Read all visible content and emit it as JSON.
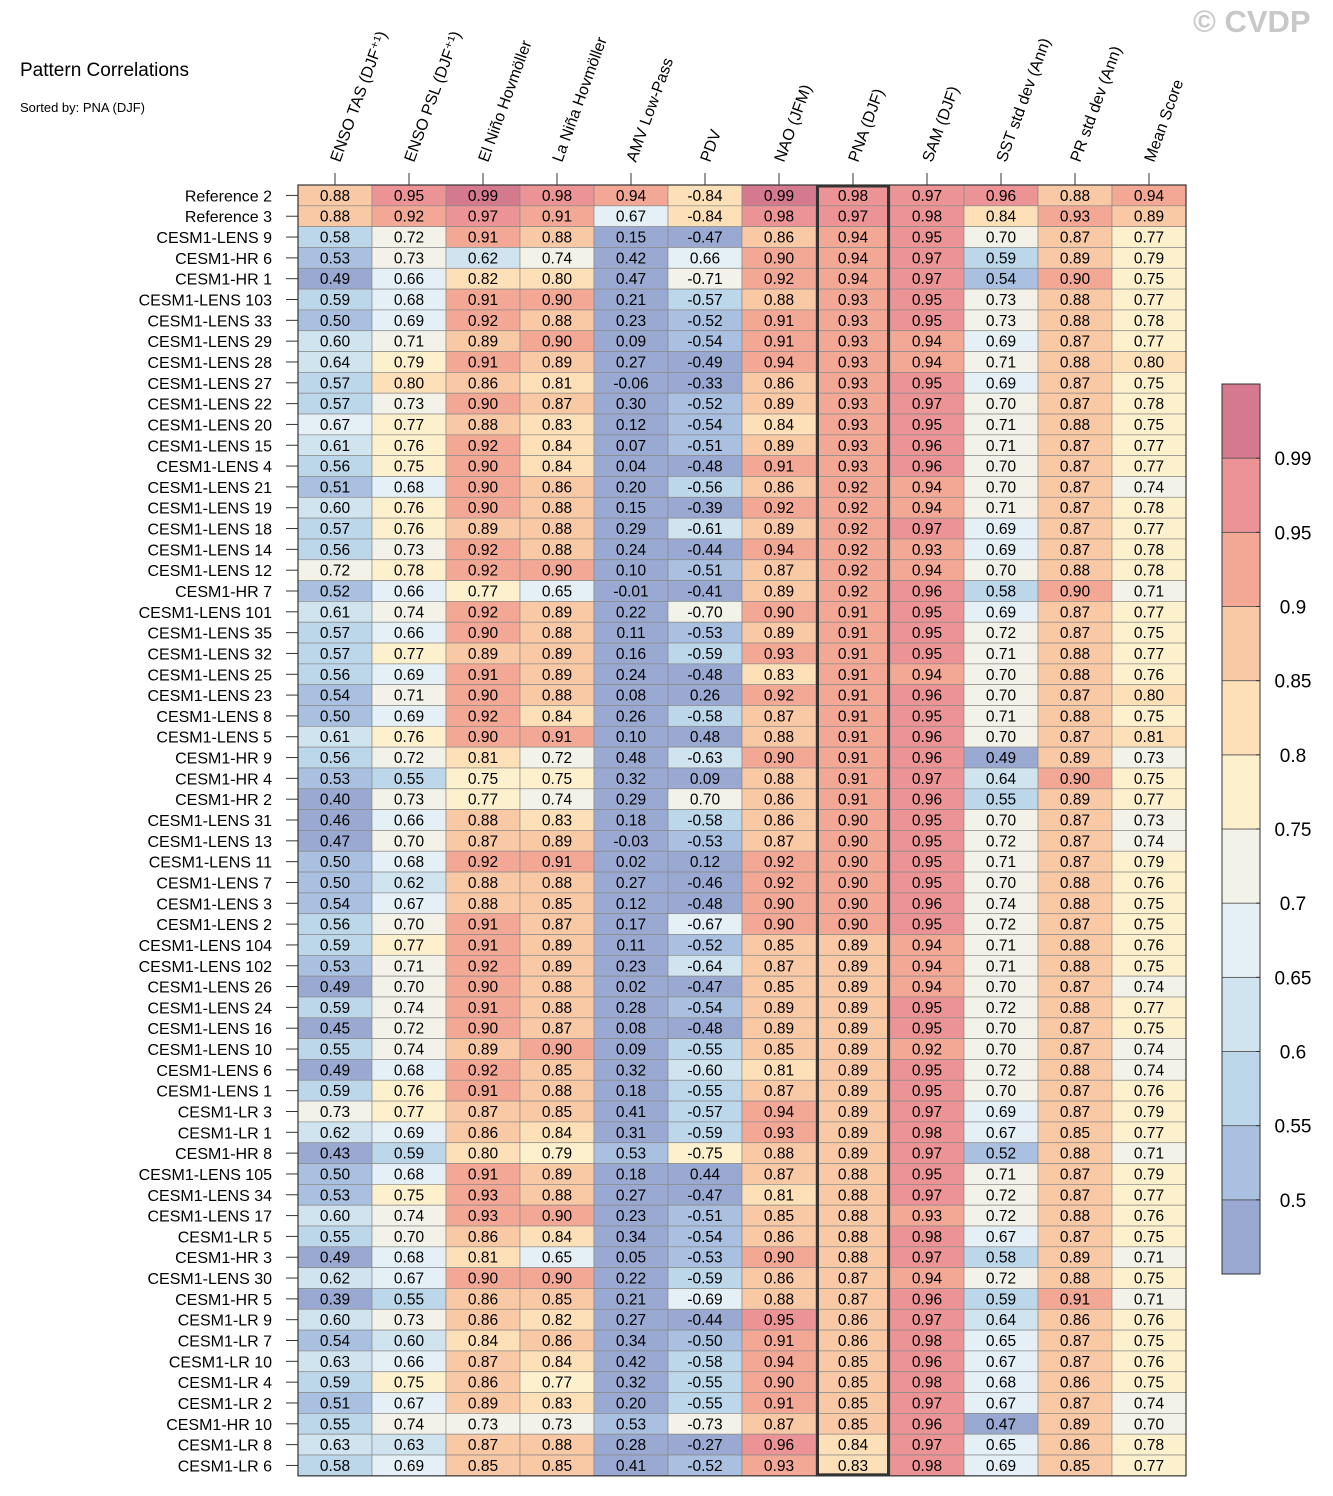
{
  "title": "Pattern Correlations",
  "subtitle": "Sorted by: PNA (DJF)",
  "watermark": "© CVDP",
  "chart_data": {
    "type": "heatmap",
    "title": "Pattern Correlations",
    "subtitle": "Sorted by: PNA (DJF)",
    "highlighted_column": "PNA (DJF)",
    "columns": [
      "ENSO TAS (DJF⁺¹)",
      "ENSO PSL (DJF⁺¹)",
      "El Niño Hovmöller",
      "La Niña Hovmöller",
      "AMV Low-Pass",
      "PDV",
      "NAO (JFM)",
      "PNA (DJF)",
      "SAM (DJF)",
      "SST std dev (Ann)",
      "PR std dev (Ann)",
      "Mean Score"
    ],
    "rows": [
      {
        "name": "Reference 2",
        "values": [
          0.88,
          0.95,
          0.99,
          0.98,
          0.94,
          -0.84,
          0.99,
          0.98,
          0.97,
          0.96,
          0.88,
          0.94
        ]
      },
      {
        "name": "Reference 3",
        "values": [
          0.88,
          0.92,
          0.97,
          0.91,
          0.67,
          -0.84,
          0.98,
          0.97,
          0.98,
          0.84,
          0.93,
          0.89
        ]
      },
      {
        "name": "CESM1-LENS 9",
        "values": [
          0.58,
          0.72,
          0.91,
          0.88,
          0.15,
          -0.47,
          0.86,
          0.94,
          0.95,
          0.7,
          0.87,
          0.77
        ]
      },
      {
        "name": "CESM1-HR 6",
        "values": [
          0.53,
          0.73,
          0.62,
          0.74,
          0.42,
          0.66,
          0.9,
          0.94,
          0.97,
          0.59,
          0.89,
          0.79
        ]
      },
      {
        "name": "CESM1-HR 1",
        "values": [
          0.49,
          0.66,
          0.82,
          0.8,
          0.47,
          -0.71,
          0.92,
          0.94,
          0.97,
          0.54,
          0.9,
          0.75
        ]
      },
      {
        "name": "CESM1-LENS 103",
        "values": [
          0.59,
          0.68,
          0.91,
          0.9,
          0.21,
          -0.57,
          0.88,
          0.93,
          0.95,
          0.73,
          0.88,
          0.77
        ]
      },
      {
        "name": "CESM1-LENS 33",
        "values": [
          0.5,
          0.69,
          0.92,
          0.88,
          0.23,
          -0.52,
          0.91,
          0.93,
          0.95,
          0.73,
          0.88,
          0.78
        ]
      },
      {
        "name": "CESM1-LENS 29",
        "values": [
          0.6,
          0.71,
          0.89,
          0.9,
          0.09,
          -0.54,
          0.91,
          0.93,
          0.94,
          0.69,
          0.87,
          0.77
        ]
      },
      {
        "name": "CESM1-LENS 28",
        "values": [
          0.64,
          0.79,
          0.91,
          0.89,
          0.27,
          -0.49,
          0.94,
          0.93,
          0.94,
          0.71,
          0.88,
          0.8
        ]
      },
      {
        "name": "CESM1-LENS 27",
        "values": [
          0.57,
          0.8,
          0.86,
          0.81,
          -0.06,
          -0.33,
          0.86,
          0.93,
          0.95,
          0.69,
          0.87,
          0.75
        ]
      },
      {
        "name": "CESM1-LENS 22",
        "values": [
          0.57,
          0.73,
          0.9,
          0.87,
          0.3,
          -0.52,
          0.89,
          0.93,
          0.97,
          0.7,
          0.87,
          0.78
        ]
      },
      {
        "name": "CESM1-LENS 20",
        "values": [
          0.67,
          0.77,
          0.88,
          0.83,
          0.12,
          -0.54,
          0.84,
          0.93,
          0.95,
          0.71,
          0.88,
          0.75
        ]
      },
      {
        "name": "CESM1-LENS 15",
        "values": [
          0.61,
          0.76,
          0.92,
          0.84,
          0.07,
          -0.51,
          0.89,
          0.93,
          0.96,
          0.71,
          0.87,
          0.77
        ]
      },
      {
        "name": "CESM1-LENS 4",
        "values": [
          0.56,
          0.75,
          0.9,
          0.84,
          0.04,
          -0.48,
          0.91,
          0.93,
          0.96,
          0.7,
          0.87,
          0.77
        ]
      },
      {
        "name": "CESM1-LENS 21",
        "values": [
          0.51,
          0.68,
          0.9,
          0.86,
          0.2,
          -0.56,
          0.86,
          0.92,
          0.94,
          0.7,
          0.87,
          0.74
        ]
      },
      {
        "name": "CESM1-LENS 19",
        "values": [
          0.6,
          0.76,
          0.9,
          0.88,
          0.15,
          -0.39,
          0.92,
          0.92,
          0.94,
          0.71,
          0.87,
          0.78
        ]
      },
      {
        "name": "CESM1-LENS 18",
        "values": [
          0.57,
          0.76,
          0.89,
          0.88,
          0.29,
          -0.61,
          0.89,
          0.92,
          0.97,
          0.69,
          0.87,
          0.77
        ]
      },
      {
        "name": "CESM1-LENS 14",
        "values": [
          0.56,
          0.73,
          0.92,
          0.88,
          0.24,
          -0.44,
          0.94,
          0.92,
          0.93,
          0.69,
          0.87,
          0.78
        ]
      },
      {
        "name": "CESM1-LENS 12",
        "values": [
          0.72,
          0.78,
          0.92,
          0.9,
          0.1,
          -0.51,
          0.87,
          0.92,
          0.94,
          0.7,
          0.88,
          0.78
        ]
      },
      {
        "name": "CESM1-HR 7",
        "values": [
          0.52,
          0.66,
          0.77,
          0.65,
          -0.01,
          -0.41,
          0.89,
          0.92,
          0.96,
          0.58,
          0.9,
          0.71
        ]
      },
      {
        "name": "CESM1-LENS 101",
        "values": [
          0.61,
          0.74,
          0.92,
          0.89,
          0.22,
          -0.7,
          0.9,
          0.91,
          0.95,
          0.69,
          0.87,
          0.77
        ]
      },
      {
        "name": "CESM1-LENS 35",
        "values": [
          0.57,
          0.66,
          0.9,
          0.88,
          0.11,
          -0.53,
          0.89,
          0.91,
          0.95,
          0.72,
          0.87,
          0.75
        ]
      },
      {
        "name": "CESM1-LENS 32",
        "values": [
          0.57,
          0.77,
          0.89,
          0.89,
          0.16,
          -0.59,
          0.93,
          0.91,
          0.95,
          0.71,
          0.88,
          0.77
        ]
      },
      {
        "name": "CESM1-LENS 25",
        "values": [
          0.56,
          0.69,
          0.91,
          0.89,
          0.24,
          -0.48,
          0.83,
          0.91,
          0.94,
          0.7,
          0.88,
          0.76
        ]
      },
      {
        "name": "CESM1-LENS 23",
        "values": [
          0.54,
          0.71,
          0.9,
          0.88,
          0.08,
          0.26,
          0.92,
          0.91,
          0.96,
          0.7,
          0.87,
          0.8
        ]
      },
      {
        "name": "CESM1-LENS 8",
        "values": [
          0.5,
          0.69,
          0.92,
          0.84,
          0.26,
          -0.58,
          0.87,
          0.91,
          0.95,
          0.71,
          0.88,
          0.75
        ]
      },
      {
        "name": "CESM1-LENS 5",
        "values": [
          0.61,
          0.76,
          0.9,
          0.91,
          0.1,
          0.48,
          0.88,
          0.91,
          0.96,
          0.7,
          0.87,
          0.81
        ]
      },
      {
        "name": "CESM1-HR 9",
        "values": [
          0.56,
          0.72,
          0.81,
          0.72,
          0.48,
          -0.63,
          0.9,
          0.91,
          0.96,
          0.49,
          0.89,
          0.73
        ]
      },
      {
        "name": "CESM1-HR 4",
        "values": [
          0.53,
          0.55,
          0.75,
          0.75,
          0.32,
          0.09,
          0.88,
          0.91,
          0.97,
          0.64,
          0.9,
          0.75
        ]
      },
      {
        "name": "CESM1-HR 2",
        "values": [
          0.4,
          0.73,
          0.77,
          0.74,
          0.29,
          0.7,
          0.86,
          0.91,
          0.96,
          0.55,
          0.89,
          0.77
        ]
      },
      {
        "name": "CESM1-LENS 31",
        "values": [
          0.46,
          0.66,
          0.88,
          0.83,
          0.18,
          -0.58,
          0.86,
          0.9,
          0.95,
          0.7,
          0.87,
          0.73
        ]
      },
      {
        "name": "CESM1-LENS 13",
        "values": [
          0.47,
          0.7,
          0.87,
          0.89,
          -0.03,
          -0.53,
          0.87,
          0.9,
          0.95,
          0.72,
          0.87,
          0.74
        ]
      },
      {
        "name": "CESM1-LENS 11",
        "values": [
          0.5,
          0.68,
          0.92,
          0.91,
          0.02,
          0.12,
          0.92,
          0.9,
          0.95,
          0.71,
          0.87,
          0.79
        ]
      },
      {
        "name": "CESM1-LENS 7",
        "values": [
          0.5,
          0.62,
          0.88,
          0.88,
          0.27,
          -0.46,
          0.92,
          0.9,
          0.95,
          0.7,
          0.88,
          0.76
        ]
      },
      {
        "name": "CESM1-LENS 3",
        "values": [
          0.54,
          0.67,
          0.88,
          0.85,
          0.12,
          -0.48,
          0.9,
          0.9,
          0.96,
          0.74,
          0.88,
          0.75
        ]
      },
      {
        "name": "CESM1-LENS 2",
        "values": [
          0.56,
          0.7,
          0.91,
          0.87,
          0.17,
          -0.67,
          0.9,
          0.9,
          0.95,
          0.72,
          0.87,
          0.75
        ]
      },
      {
        "name": "CESM1-LENS 104",
        "values": [
          0.59,
          0.77,
          0.91,
          0.89,
          0.11,
          -0.52,
          0.85,
          0.89,
          0.94,
          0.71,
          0.88,
          0.76
        ]
      },
      {
        "name": "CESM1-LENS 102",
        "values": [
          0.53,
          0.71,
          0.92,
          0.89,
          0.23,
          -0.64,
          0.87,
          0.89,
          0.94,
          0.71,
          0.88,
          0.75
        ]
      },
      {
        "name": "CESM1-LENS 26",
        "values": [
          0.49,
          0.7,
          0.9,
          0.88,
          0.02,
          -0.47,
          0.85,
          0.89,
          0.94,
          0.7,
          0.87,
          0.74
        ]
      },
      {
        "name": "CESM1-LENS 24",
        "values": [
          0.59,
          0.74,
          0.91,
          0.88,
          0.28,
          -0.54,
          0.89,
          0.89,
          0.95,
          0.72,
          0.88,
          0.77
        ]
      },
      {
        "name": "CESM1-LENS 16",
        "values": [
          0.45,
          0.72,
          0.9,
          0.87,
          0.08,
          -0.48,
          0.89,
          0.89,
          0.95,
          0.7,
          0.87,
          0.75
        ]
      },
      {
        "name": "CESM1-LENS 10",
        "values": [
          0.55,
          0.74,
          0.89,
          0.9,
          0.09,
          -0.55,
          0.85,
          0.89,
          0.92,
          0.7,
          0.87,
          0.74
        ]
      },
      {
        "name": "CESM1-LENS 6",
        "values": [
          0.49,
          0.68,
          0.92,
          0.85,
          0.32,
          -0.6,
          0.81,
          0.89,
          0.95,
          0.72,
          0.88,
          0.74
        ]
      },
      {
        "name": "CESM1-LENS 1",
        "values": [
          0.59,
          0.76,
          0.91,
          0.88,
          0.18,
          -0.55,
          0.87,
          0.89,
          0.95,
          0.7,
          0.87,
          0.76
        ]
      },
      {
        "name": "CESM1-LR 3",
        "values": [
          0.73,
          0.77,
          0.87,
          0.85,
          0.41,
          -0.57,
          0.94,
          0.89,
          0.97,
          0.69,
          0.87,
          0.79
        ]
      },
      {
        "name": "CESM1-LR 1",
        "values": [
          0.62,
          0.69,
          0.86,
          0.84,
          0.31,
          -0.59,
          0.93,
          0.89,
          0.98,
          0.67,
          0.85,
          0.77
        ]
      },
      {
        "name": "CESM1-HR 8",
        "values": [
          0.43,
          0.59,
          0.8,
          0.79,
          0.53,
          -0.75,
          0.88,
          0.89,
          0.97,
          0.52,
          0.88,
          0.71
        ]
      },
      {
        "name": "CESM1-LENS 105",
        "values": [
          0.5,
          0.68,
          0.91,
          0.89,
          0.18,
          0.44,
          0.87,
          0.88,
          0.95,
          0.71,
          0.87,
          0.79
        ]
      },
      {
        "name": "CESM1-LENS 34",
        "values": [
          0.53,
          0.75,
          0.93,
          0.88,
          0.27,
          -0.47,
          0.81,
          0.88,
          0.97,
          0.72,
          0.87,
          0.77
        ]
      },
      {
        "name": "CESM1-LENS 17",
        "values": [
          0.6,
          0.74,
          0.93,
          0.9,
          0.23,
          -0.51,
          0.85,
          0.88,
          0.93,
          0.72,
          0.88,
          0.76
        ]
      },
      {
        "name": "CESM1-LR 5",
        "values": [
          0.55,
          0.7,
          0.86,
          0.84,
          0.34,
          -0.54,
          0.86,
          0.88,
          0.98,
          0.67,
          0.87,
          0.75
        ]
      },
      {
        "name": "CESM1-HR 3",
        "values": [
          0.49,
          0.68,
          0.81,
          0.65,
          0.05,
          -0.53,
          0.9,
          0.88,
          0.97,
          0.58,
          0.89,
          0.71
        ]
      },
      {
        "name": "CESM1-LENS 30",
        "values": [
          0.62,
          0.67,
          0.9,
          0.9,
          0.22,
          -0.59,
          0.86,
          0.87,
          0.94,
          0.72,
          0.88,
          0.75
        ]
      },
      {
        "name": "CESM1-HR 5",
        "values": [
          0.39,
          0.55,
          0.86,
          0.85,
          0.21,
          -0.69,
          0.88,
          0.87,
          0.96,
          0.59,
          0.91,
          0.71
        ]
      },
      {
        "name": "CESM1-LR 9",
        "values": [
          0.6,
          0.73,
          0.86,
          0.82,
          0.27,
          -0.44,
          0.95,
          0.86,
          0.97,
          0.64,
          0.86,
          0.76
        ]
      },
      {
        "name": "CESM1-LR 7",
        "values": [
          0.54,
          0.6,
          0.84,
          0.86,
          0.34,
          -0.5,
          0.91,
          0.86,
          0.98,
          0.65,
          0.87,
          0.75
        ]
      },
      {
        "name": "CESM1-LR 10",
        "values": [
          0.63,
          0.66,
          0.87,
          0.84,
          0.42,
          -0.58,
          0.94,
          0.85,
          0.96,
          0.67,
          0.87,
          0.76
        ]
      },
      {
        "name": "CESM1-LR 4",
        "values": [
          0.59,
          0.75,
          0.86,
          0.77,
          0.32,
          -0.55,
          0.9,
          0.85,
          0.98,
          0.68,
          0.86,
          0.75
        ]
      },
      {
        "name": "CESM1-LR 2",
        "values": [
          0.51,
          0.67,
          0.89,
          0.83,
          0.2,
          -0.55,
          0.91,
          0.85,
          0.97,
          0.67,
          0.87,
          0.74
        ]
      },
      {
        "name": "CESM1-HR 10",
        "values": [
          0.55,
          0.74,
          0.73,
          0.73,
          0.53,
          -0.73,
          0.87,
          0.85,
          0.96,
          0.47,
          0.89,
          0.7
        ]
      },
      {
        "name": "CESM1-LR 8",
        "values": [
          0.63,
          0.63,
          0.87,
          0.88,
          0.28,
          -0.27,
          0.96,
          0.84,
          0.97,
          0.65,
          0.86,
          0.78
        ]
      },
      {
        "name": "CESM1-LR 6",
        "values": [
          0.58,
          0.69,
          0.85,
          0.85,
          0.41,
          -0.52,
          0.93,
          0.83,
          0.98,
          0.69,
          0.85,
          0.77
        ]
      }
    ],
    "colorbar": {
      "ticks": [
        "0.99",
        "0.95",
        "0.9",
        "0.85",
        "0.8",
        "0.75",
        "0.7",
        "0.65",
        "0.6",
        "0.55",
        "0.5"
      ],
      "levels": [
        0.5,
        0.55,
        0.6,
        0.65,
        0.7,
        0.75,
        0.8,
        0.85,
        0.9,
        0.95,
        0.99
      ],
      "colors": [
        "#9aa9d1",
        "#aac0e0",
        "#bcd6ea",
        "#d0e4ef",
        "#e4f0f5",
        "#f2f2e8",
        "#fdf0cc",
        "#fde0b8",
        "#f9c8a4",
        "#f2a895",
        "#ec9395",
        "#d4798e"
      ]
    }
  }
}
